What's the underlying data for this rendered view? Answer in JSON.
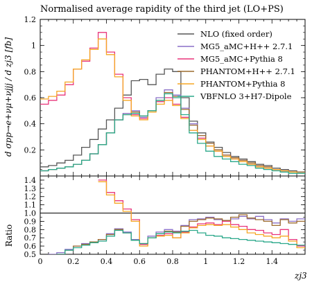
{
  "chart_data": [
    {
      "type": "line",
      "panel": "main",
      "title": "Normalised average rapidity of the third jet (LO+PS)",
      "ylabel": "d σpp→e+νμ+νjjj / d zj3 [fb]",
      "xlabel": "zj3",
      "xlim": [
        0,
        1.6
      ],
      "ylim": [
        0,
        1.2
      ],
      "x_ticks": [
        "0",
        "0.2",
        "0.4",
        "0.6",
        "0.8",
        "1",
        "1.2",
        "1.4"
      ],
      "y_ticks": [
        "0.2",
        "0.4",
        "0.6",
        "0.8",
        "1",
        "1.2"
      ],
      "legend_position": "top-right",
      "bin_width": 0.05,
      "series": [
        {
          "name": "NLO (fixed order)",
          "color": "#555555",
          "values": [
            0.07,
            0.08,
            0.1,
            0.12,
            0.16,
            0.22,
            0.28,
            0.36,
            0.43,
            0.52,
            0.62,
            0.73,
            0.74,
            0.7,
            0.78,
            0.82,
            0.8,
            0.6,
            0.42,
            0.33,
            0.26,
            0.22,
            0.18,
            0.15,
            0.13,
            0.11,
            0.09,
            0.08,
            0.06,
            0.05,
            0.04,
            0.03
          ]
        },
        {
          "name": "MG5_aMC+H++ 2.7.1",
          "color": "#8a6fc7",
          "values": [
            0.04,
            0.05,
            0.06,
            0.07,
            0.09,
            0.12,
            0.17,
            0.24,
            0.33,
            0.43,
            0.48,
            0.5,
            0.45,
            0.5,
            0.6,
            0.66,
            0.62,
            0.52,
            0.4,
            0.31,
            0.25,
            0.2,
            0.16,
            0.14,
            0.12,
            0.1,
            0.08,
            0.07,
            0.05,
            0.04,
            0.03,
            0.03
          ]
        },
        {
          "name": "MG5_aMC+Pythia 8",
          "color": "#e8347a",
          "values": [
            0.55,
            0.58,
            0.62,
            0.7,
            0.82,
            0.88,
            0.98,
            1.1,
            0.95,
            0.78,
            0.6,
            0.47,
            0.44,
            0.5,
            0.57,
            0.6,
            0.55,
            0.45,
            0.35,
            0.29,
            0.23,
            0.19,
            0.16,
            0.13,
            0.11,
            0.09,
            0.07,
            0.06,
            0.05,
            0.04,
            0.03,
            0.02
          ]
        },
        {
          "name": "PHANTOM+H++ 2.7.1",
          "color": "#9c6b2e",
          "values": [
            0.04,
            0.05,
            0.06,
            0.07,
            0.09,
            0.12,
            0.17,
            0.24,
            0.33,
            0.43,
            0.47,
            0.49,
            0.46,
            0.5,
            0.58,
            0.64,
            0.61,
            0.51,
            0.39,
            0.31,
            0.25,
            0.2,
            0.16,
            0.14,
            0.12,
            0.1,
            0.08,
            0.07,
            0.05,
            0.04,
            0.03,
            0.03
          ]
        },
        {
          "name": "PHANTOM+Pythia 8",
          "color": "#f5a623",
          "values": [
            0.59,
            0.61,
            0.65,
            0.72,
            0.82,
            0.89,
            0.97,
            1.05,
            0.93,
            0.76,
            0.58,
            0.46,
            0.43,
            0.49,
            0.55,
            0.58,
            0.54,
            0.44,
            0.35,
            0.28,
            0.23,
            0.19,
            0.15,
            0.13,
            0.11,
            0.09,
            0.07,
            0.06,
            0.05,
            0.04,
            0.03,
            0.02
          ]
        },
        {
          "name": "VBFNLO 3+H7-Dipole",
          "color": "#2aa88a",
          "values": [
            0.04,
            0.05,
            0.06,
            0.07,
            0.09,
            0.12,
            0.17,
            0.24,
            0.33,
            0.43,
            0.47,
            0.48,
            0.46,
            0.5,
            0.58,
            0.63,
            0.6,
            0.47,
            0.33,
            0.25,
            0.19,
            0.15,
            0.13,
            0.11,
            0.09,
            0.08,
            0.06,
            0.05,
            0.04,
            0.03,
            0.02,
            0.02
          ]
        }
      ]
    },
    {
      "type": "line",
      "panel": "ratio",
      "ylabel": "Ratio",
      "xlabel": "zj3",
      "xlim": [
        0,
        1.6
      ],
      "ylim": [
        0.5,
        1.45
      ],
      "x_ticks": [
        "0",
        "0.2",
        "0.4",
        "0.6",
        "0.8",
        "1",
        "1.2",
        "1.4"
      ],
      "y_ticks": [
        "0.5",
        "0.6",
        "0.7",
        "0.8",
        "0.9",
        "1.0",
        "1.1",
        "1.2",
        "1.3",
        "1.4"
      ],
      "reference_line": 1.0,
      "bin_width": 0.05,
      "series": [
        {
          "name": "MG5_aMC+H++ 2.7.1",
          "color": "#8a6fc7",
          "values": [
            0.45,
            0.5,
            0.52,
            0.56,
            0.6,
            0.63,
            0.65,
            0.68,
            0.75,
            0.81,
            0.77,
            0.68,
            0.62,
            0.72,
            0.77,
            0.8,
            0.78,
            0.85,
            0.92,
            0.93,
            0.95,
            0.92,
            0.9,
            0.93,
            0.96,
            0.93,
            0.96,
            0.92,
            0.88,
            0.93,
            0.9,
            0.93
          ]
        },
        {
          "name": "MG5_aMC+Pythia 8",
          "color": "#e8347a",
          "values": [
            null,
            null,
            null,
            null,
            null,
            null,
            null,
            1.4,
            1.25,
            1.15,
            1.05,
            0.92,
            0.62,
            0.7,
            0.73,
            0.75,
            0.7,
            0.77,
            0.83,
            0.87,
            0.88,
            0.86,
            0.9,
            0.86,
            0.84,
            0.8,
            0.79,
            0.76,
            0.74,
            0.8,
            0.68,
            0.6
          ]
        },
        {
          "name": "PHANTOM+H++ 2.7.1",
          "color": "#9c6b2e",
          "values": [
            0.4,
            0.45,
            0.5,
            0.55,
            0.6,
            0.62,
            0.65,
            0.68,
            0.74,
            0.8,
            0.76,
            0.67,
            0.63,
            0.7,
            0.75,
            0.78,
            0.77,
            0.84,
            0.9,
            0.92,
            0.94,
            0.93,
            0.91,
            0.95,
            0.98,
            0.94,
            0.92,
            0.9,
            0.85,
            0.92,
            0.88,
            0.9
          ]
        },
        {
          "name": "PHANTOM+Pythia 8",
          "color": "#f5a623",
          "values": [
            null,
            null,
            null,
            null,
            null,
            null,
            null,
            1.38,
            1.22,
            1.12,
            1.02,
            0.9,
            0.6,
            0.7,
            0.72,
            0.73,
            0.7,
            0.76,
            0.82,
            0.85,
            0.86,
            0.85,
            0.86,
            0.83,
            0.8,
            0.76,
            0.74,
            0.72,
            0.7,
            0.72,
            0.66,
            0.58
          ]
        },
        {
          "name": "VBFNLO 3+H7-Dipole",
          "color": "#2aa88a",
          "values": [
            0.4,
            0.45,
            0.5,
            0.55,
            0.58,
            0.61,
            0.64,
            0.66,
            0.72,
            0.79,
            0.76,
            0.67,
            0.63,
            0.7,
            0.75,
            0.77,
            0.76,
            0.78,
            0.79,
            0.76,
            0.73,
            0.72,
            0.7,
            0.69,
            0.68,
            0.67,
            0.66,
            0.65,
            0.64,
            0.63,
            0.62,
            0.61
          ]
        }
      ]
    }
  ]
}
